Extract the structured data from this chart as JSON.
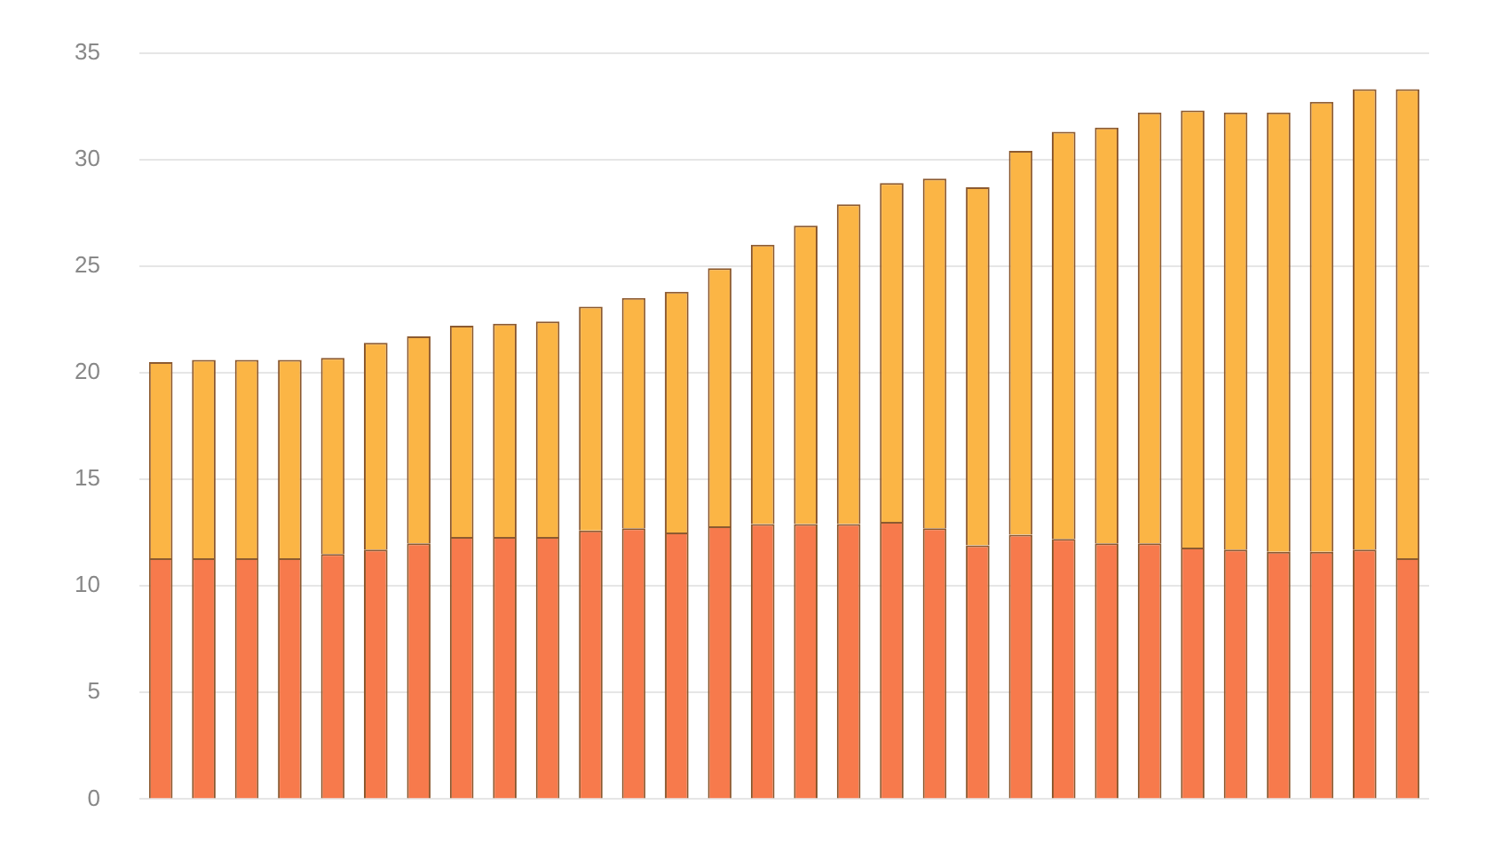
{
  "chart_data": {
    "type": "bar",
    "stacked": true,
    "categories": [
      null,
      null,
      null,
      null,
      null,
      null,
      null,
      null,
      null,
      null,
      null,
      null,
      null,
      null,
      null,
      null,
      null,
      null,
      null,
      null,
      null,
      null,
      null,
      null,
      null,
      null,
      null,
      null,
      null,
      null
    ],
    "series": [
      {
        "color": "#f77a4c",
        "values": [
          11.3,
          11.3,
          11.3,
          11.3,
          11.5,
          11.7,
          12.0,
          12.3,
          12.3,
          12.3,
          12.6,
          12.7,
          12.5,
          12.8,
          12.9,
          12.9,
          12.9,
          13.0,
          12.7,
          11.9,
          12.4,
          12.2,
          12.0,
          12.0,
          11.8,
          11.7,
          11.6,
          11.6,
          11.7,
          11.3
        ]
      },
      {
        "color": "#fbb545",
        "values": [
          9.2,
          9.3,
          9.3,
          9.3,
          9.2,
          9.7,
          9.7,
          9.9,
          10.0,
          10.1,
          10.5,
          10.8,
          11.3,
          12.1,
          13.1,
          14.0,
          15.0,
          15.9,
          16.4,
          16.8,
          18.0,
          19.1,
          19.5,
          20.2,
          20.5,
          20.5,
          20.6,
          21.1,
          21.6,
          22.0
        ]
      }
    ],
    "ylim": [
      0,
      35
    ],
    "yticks": [
      0,
      5,
      10,
      15,
      20,
      25,
      30,
      35
    ],
    "grid": "y",
    "legend": false
  }
}
